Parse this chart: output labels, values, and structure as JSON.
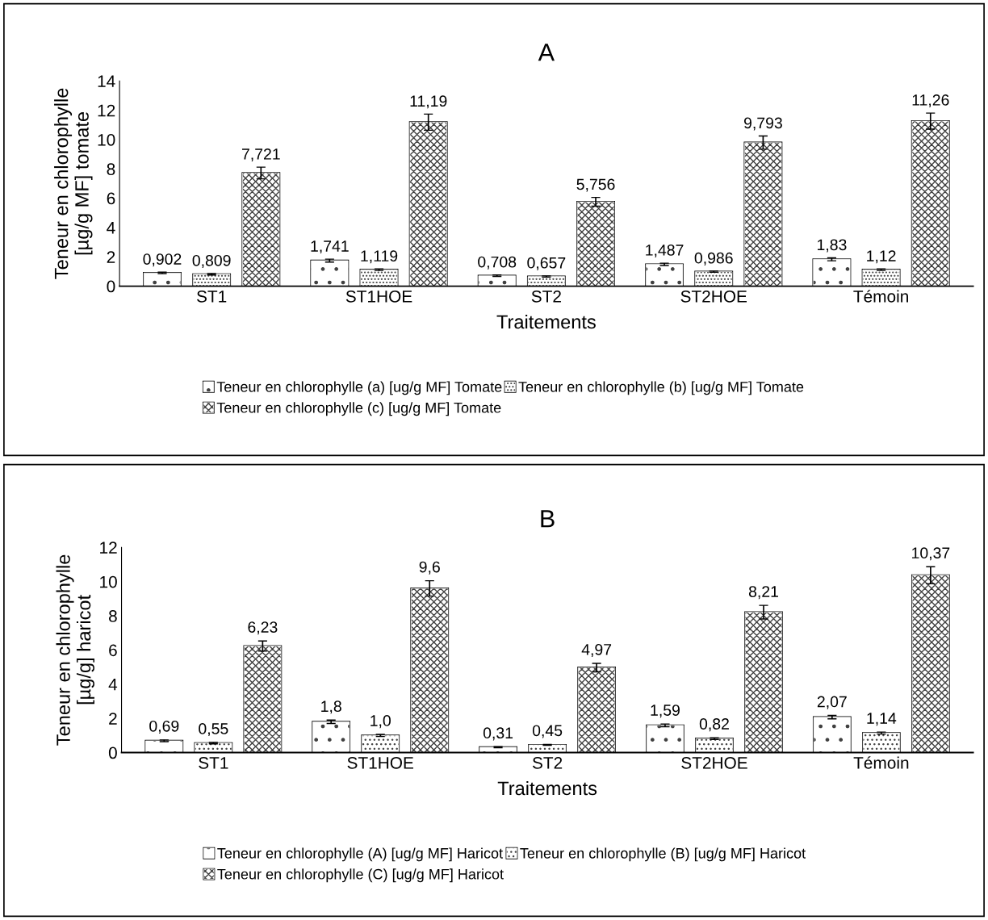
{
  "chart_data": [
    {
      "type": "bar",
      "title": "A",
      "xlabel": "Traitements",
      "ylabel": "Teneur en chlorophylle\n[µg/g MF] tomate",
      "categories": [
        "ST1",
        "ST1HOE",
        "ST2",
        "ST2HOE",
        "Témoin"
      ],
      "ylim": [
        0,
        14
      ],
      "yticks": [
        0,
        2,
        4,
        6,
        8,
        10,
        12,
        14
      ],
      "grid": false,
      "legend": "bottom",
      "series": [
        {
          "name": "Teneur en chlorophylle (a) [ug/g MF] Tomate",
          "color": "#ffffff",
          "values": [
            0.902,
            1.741,
            0.708,
            1.487,
            1.83
          ],
          "errors": [
            0.05,
            0.1,
            0.05,
            0.08,
            0.1
          ],
          "value_labels": [
            "0,902",
            "1,741",
            "0,708",
            "1,487",
            "1,83"
          ]
        },
        {
          "name": "Teneur en chlorophylle (b) [ug/g MF] Tomate",
          "color": "#ffffff",
          "values": [
            0.809,
            1.119,
            0.657,
            0.986,
            1.12
          ],
          "errors": [
            0.05,
            0.05,
            0.04,
            0.04,
            0.05
          ],
          "value_labels": [
            "0,809",
            "1,119",
            "0,657",
            "0,986",
            "1,12"
          ]
        },
        {
          "name": "Teneur en chlorophylle (c) [ug/g MF] Tomate",
          "color": "#ffffff",
          "values": [
            7.721,
            11.19,
            5.756,
            9.793,
            11.26
          ],
          "errors": [
            0.4,
            0.55,
            0.3,
            0.45,
            0.55
          ],
          "value_labels": [
            "7,721",
            "11,19",
            "5,756",
            "9,793",
            "11,26"
          ]
        }
      ]
    },
    {
      "type": "bar",
      "title": "B",
      "xlabel": "Traitements",
      "ylabel": "Teneur en chlorophylle\n[µg/g] haricot",
      "categories": [
        "ST1",
        "ST1HOE",
        "ST2",
        "ST2HOE",
        "Témoin"
      ],
      "ylim": [
        0,
        12
      ],
      "yticks": [
        0,
        2,
        4,
        6,
        8,
        10,
        12
      ],
      "grid": false,
      "legend": "bottom",
      "series": [
        {
          "name": "Teneur en chlorophylle (A) [ug/g MF] Haricot",
          "color": "#ffffff",
          "values": [
            0.69,
            1.8,
            0.31,
            1.59,
            2.07
          ],
          "errors": [
            0.05,
            0.1,
            0.03,
            0.08,
            0.1
          ],
          "value_labels": [
            "0,69",
            "1,8",
            "0,31",
            "1,59",
            "2,07"
          ]
        },
        {
          "name": "Teneur en chlorophylle (B) [ug/g MF] Haricot",
          "color": "#ffffff",
          "values": [
            0.55,
            1.0,
            0.45,
            0.82,
            1.14
          ],
          "errors": [
            0.04,
            0.06,
            0.03,
            0.05,
            0.06
          ],
          "value_labels": [
            "0,55",
            "1,0",
            "0,45",
            "0,82",
            "1,14"
          ]
        },
        {
          "name": "Teneur en chlorophylle (C) [ug/g MF] Haricot",
          "color": "#ffffff",
          "values": [
            6.23,
            9.6,
            4.97,
            8.21,
            10.37
          ],
          "errors": [
            0.3,
            0.45,
            0.25,
            0.4,
            0.5
          ],
          "value_labels": [
            "6,23",
            "9,6",
            "4,97",
            "8,21",
            "10,37"
          ]
        }
      ]
    }
  ]
}
